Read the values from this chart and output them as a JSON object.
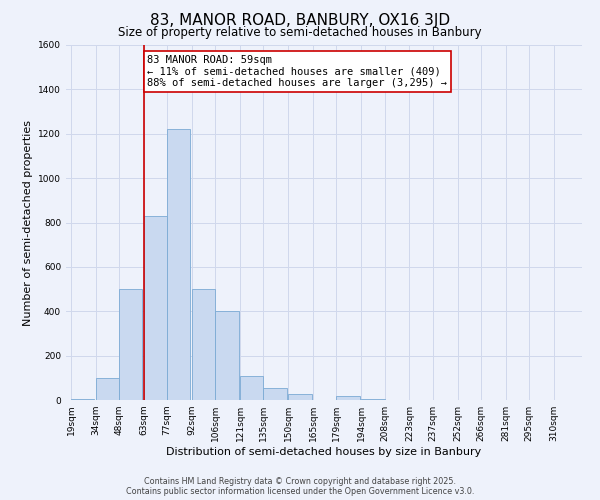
{
  "title": "83, MANOR ROAD, BANBURY, OX16 3JD",
  "subtitle": "Size of property relative to semi-detached houses in Banbury",
  "xlabel": "Distribution of semi-detached houses by size in Banbury",
  "ylabel": "Number of semi-detached properties",
  "categories": [
    "19sqm",
    "34sqm",
    "48sqm",
    "63sqm",
    "77sqm",
    "92sqm",
    "106sqm",
    "121sqm",
    "135sqm",
    "150sqm",
    "165sqm",
    "179sqm",
    "194sqm",
    "208sqm",
    "223sqm",
    "237sqm",
    "252sqm",
    "266sqm",
    "281sqm",
    "295sqm",
    "310sqm"
  ],
  "cat_values": [
    19,
    34,
    48,
    63,
    77,
    92,
    106,
    121,
    135,
    150,
    165,
    179,
    194,
    208,
    223,
    237,
    252,
    266,
    281,
    295,
    310
  ],
  "bar_values": [
    5,
    100,
    500,
    830,
    1220,
    500,
    400,
    110,
    55,
    25,
    0,
    20,
    5,
    0,
    0,
    0,
    0,
    0,
    0,
    0,
    0
  ],
  "bar_color": "#c9d9f0",
  "bar_edge_color": "#7baad4",
  "grid_color": "#d0d8ec",
  "bg_color": "#eef2fb",
  "property_line_x": 63,
  "property_line_color": "#cc0000",
  "annotation_text": "83 MANOR ROAD: 59sqm\n← 11% of semi-detached houses are smaller (409)\n88% of semi-detached houses are larger (3,295) →",
  "annotation_box_color": "#ffffff",
  "annotation_box_edge": "#cc0000",
  "ylim": [
    0,
    1600
  ],
  "yticks": [
    0,
    200,
    400,
    600,
    800,
    1000,
    1200,
    1400,
    1600
  ],
  "footnote1": "Contains HM Land Registry data © Crown copyright and database right 2025.",
  "footnote2": "Contains public sector information licensed under the Open Government Licence v3.0.",
  "title_fontsize": 11,
  "subtitle_fontsize": 8.5,
  "label_fontsize": 8,
  "tick_fontsize": 6.5,
  "annotation_fontsize": 7.5,
  "footnote_fontsize": 5.8,
  "bin_width": 14
}
